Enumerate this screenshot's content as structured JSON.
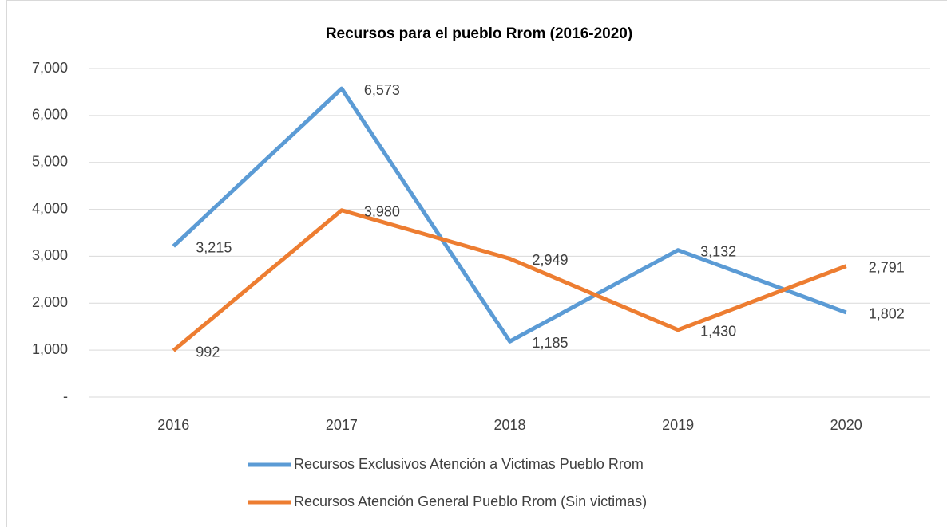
{
  "chart_data": {
    "type": "line",
    "title": "Recursos para el pueblo Rrom (2016-2020)",
    "categories": [
      "2016",
      "2017",
      "2018",
      "2019",
      "2020"
    ],
    "series": [
      {
        "name": "Recursos Exclusivos Atención a Victimas Pueblo Rrom",
        "color": "#5b9bd5",
        "values": [
          3215,
          6573,
          1185,
          3132,
          1802
        ],
        "value_labels": [
          "3,215",
          "6,573",
          "1,185",
          "3,132",
          "1,802"
        ]
      },
      {
        "name": "Recursos Atención General Pueblo Rrom (Sin victimas)",
        "color": "#ed7d31",
        "values": [
          992,
          3980,
          2949,
          1430,
          2791
        ],
        "value_labels": [
          "992",
          "3,980",
          "2,949",
          "1,430",
          "2,791"
        ]
      }
    ],
    "ylim": [
      0,
      7000
    ],
    "yticks": [
      {
        "value": 0,
        "label": "-"
      },
      {
        "value": 1000,
        "label": "1,000"
      },
      {
        "value": 2000,
        "label": "2,000"
      },
      {
        "value": 3000,
        "label": "3,000"
      },
      {
        "value": 4000,
        "label": "4,000"
      },
      {
        "value": 5000,
        "label": "5,000"
      },
      {
        "value": 6000,
        "label": "6,000"
      },
      {
        "value": 7000,
        "label": "7,000"
      }
    ],
    "grid": true
  }
}
